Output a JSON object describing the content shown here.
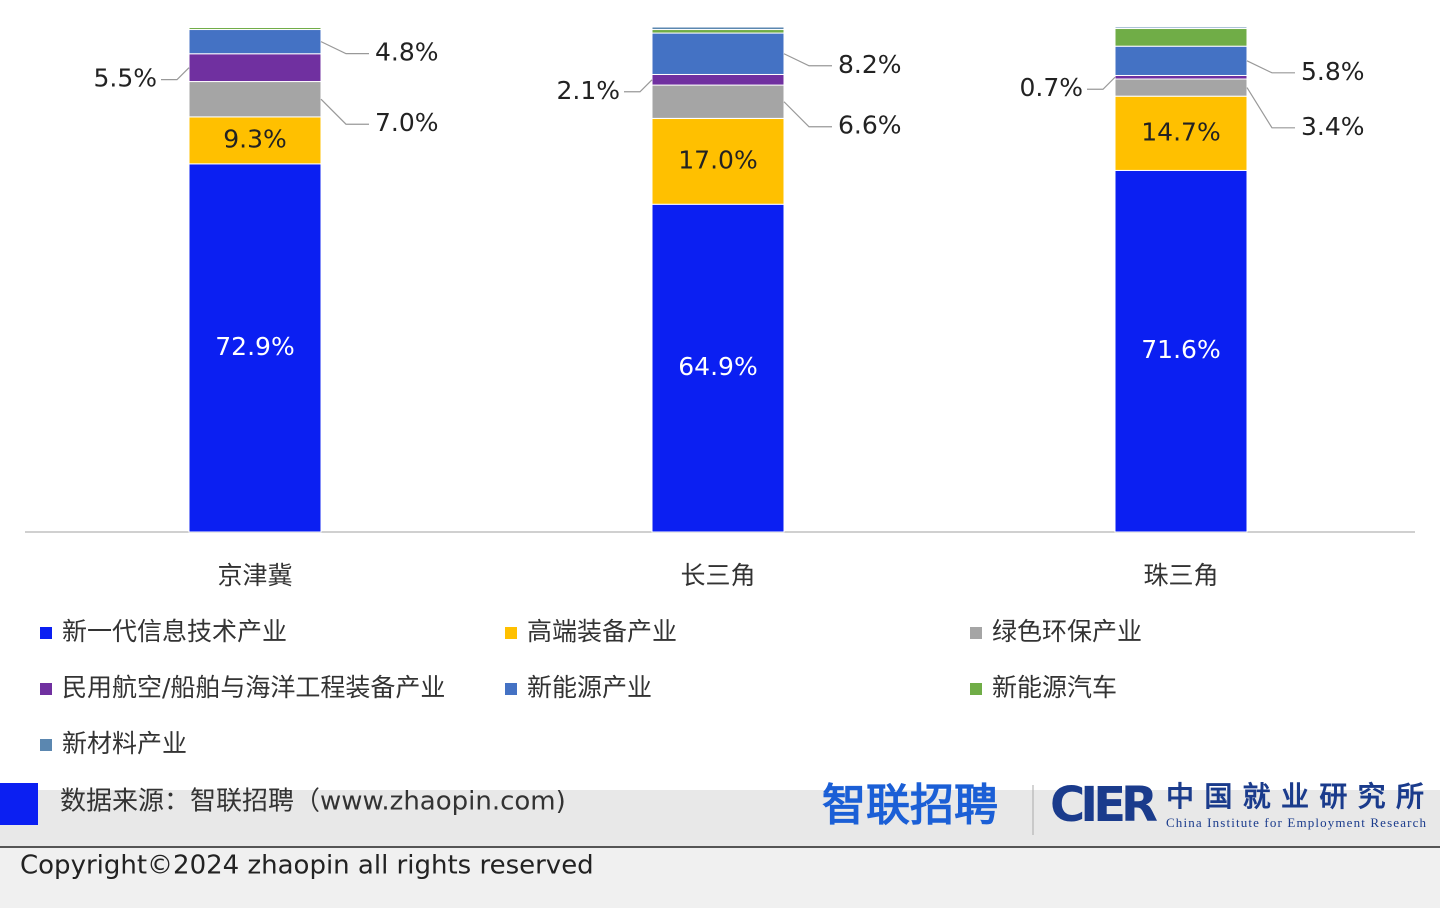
{
  "chart_data": {
    "type": "stacked_bar",
    "categories": [
      "京津冀",
      "长三角",
      "珠三角"
    ],
    "ylim": [
      0,
      100
    ],
    "series": [
      {
        "name": "新一代信息技术产业",
        "color": "#0b1ff2",
        "values": [
          72.9,
          64.9,
          71.6
        ],
        "value_labels": [
          "72.9%",
          "64.9%",
          "71.6%"
        ]
      },
      {
        "name": "高端装备产业",
        "color": "#ffc000",
        "values": [
          9.3,
          17.0,
          14.7
        ],
        "value_labels": [
          "9.3%",
          "17.0%",
          "14.7%"
        ]
      },
      {
        "name": "绿色环保产业",
        "color": "#a5a5a5",
        "values": [
          7.0,
          6.6,
          3.4
        ],
        "value_labels": [
          "7.0%",
          "6.6%",
          "3.4%"
        ]
      },
      {
        "name": "民用航空/船舶与海洋工程装备产业",
        "color": "#7030a0",
        "values": [
          5.5,
          2.1,
          0.7
        ],
        "value_labels": [
          "5.5%",
          "2.1%",
          "0.7%"
        ]
      },
      {
        "name": "新能源产业",
        "color": "#4472c4",
        "values": [
          4.8,
          8.2,
          5.8
        ],
        "value_labels": [
          "4.8%",
          "8.2%",
          "5.8%"
        ]
      },
      {
        "name": "新能源汽车",
        "color": "#70ad47",
        "values": [
          0.4,
          0.7,
          3.5
        ]
      },
      {
        "name": "新材料产业",
        "color": "#5b87b0",
        "values": [
          0.1,
          0.5,
          0.3
        ]
      }
    ]
  },
  "footer": {
    "source": "数据来源：智联招聘（www.zhaopin.com)",
    "logo_zhaopin": "智联招聘",
    "logo_cier": "CIER",
    "logo_cn": "中国就业研究所",
    "logo_en": "China Institute for Employment Research",
    "copyright": "Copyright©2024 zhaopin all rights reserved"
  }
}
